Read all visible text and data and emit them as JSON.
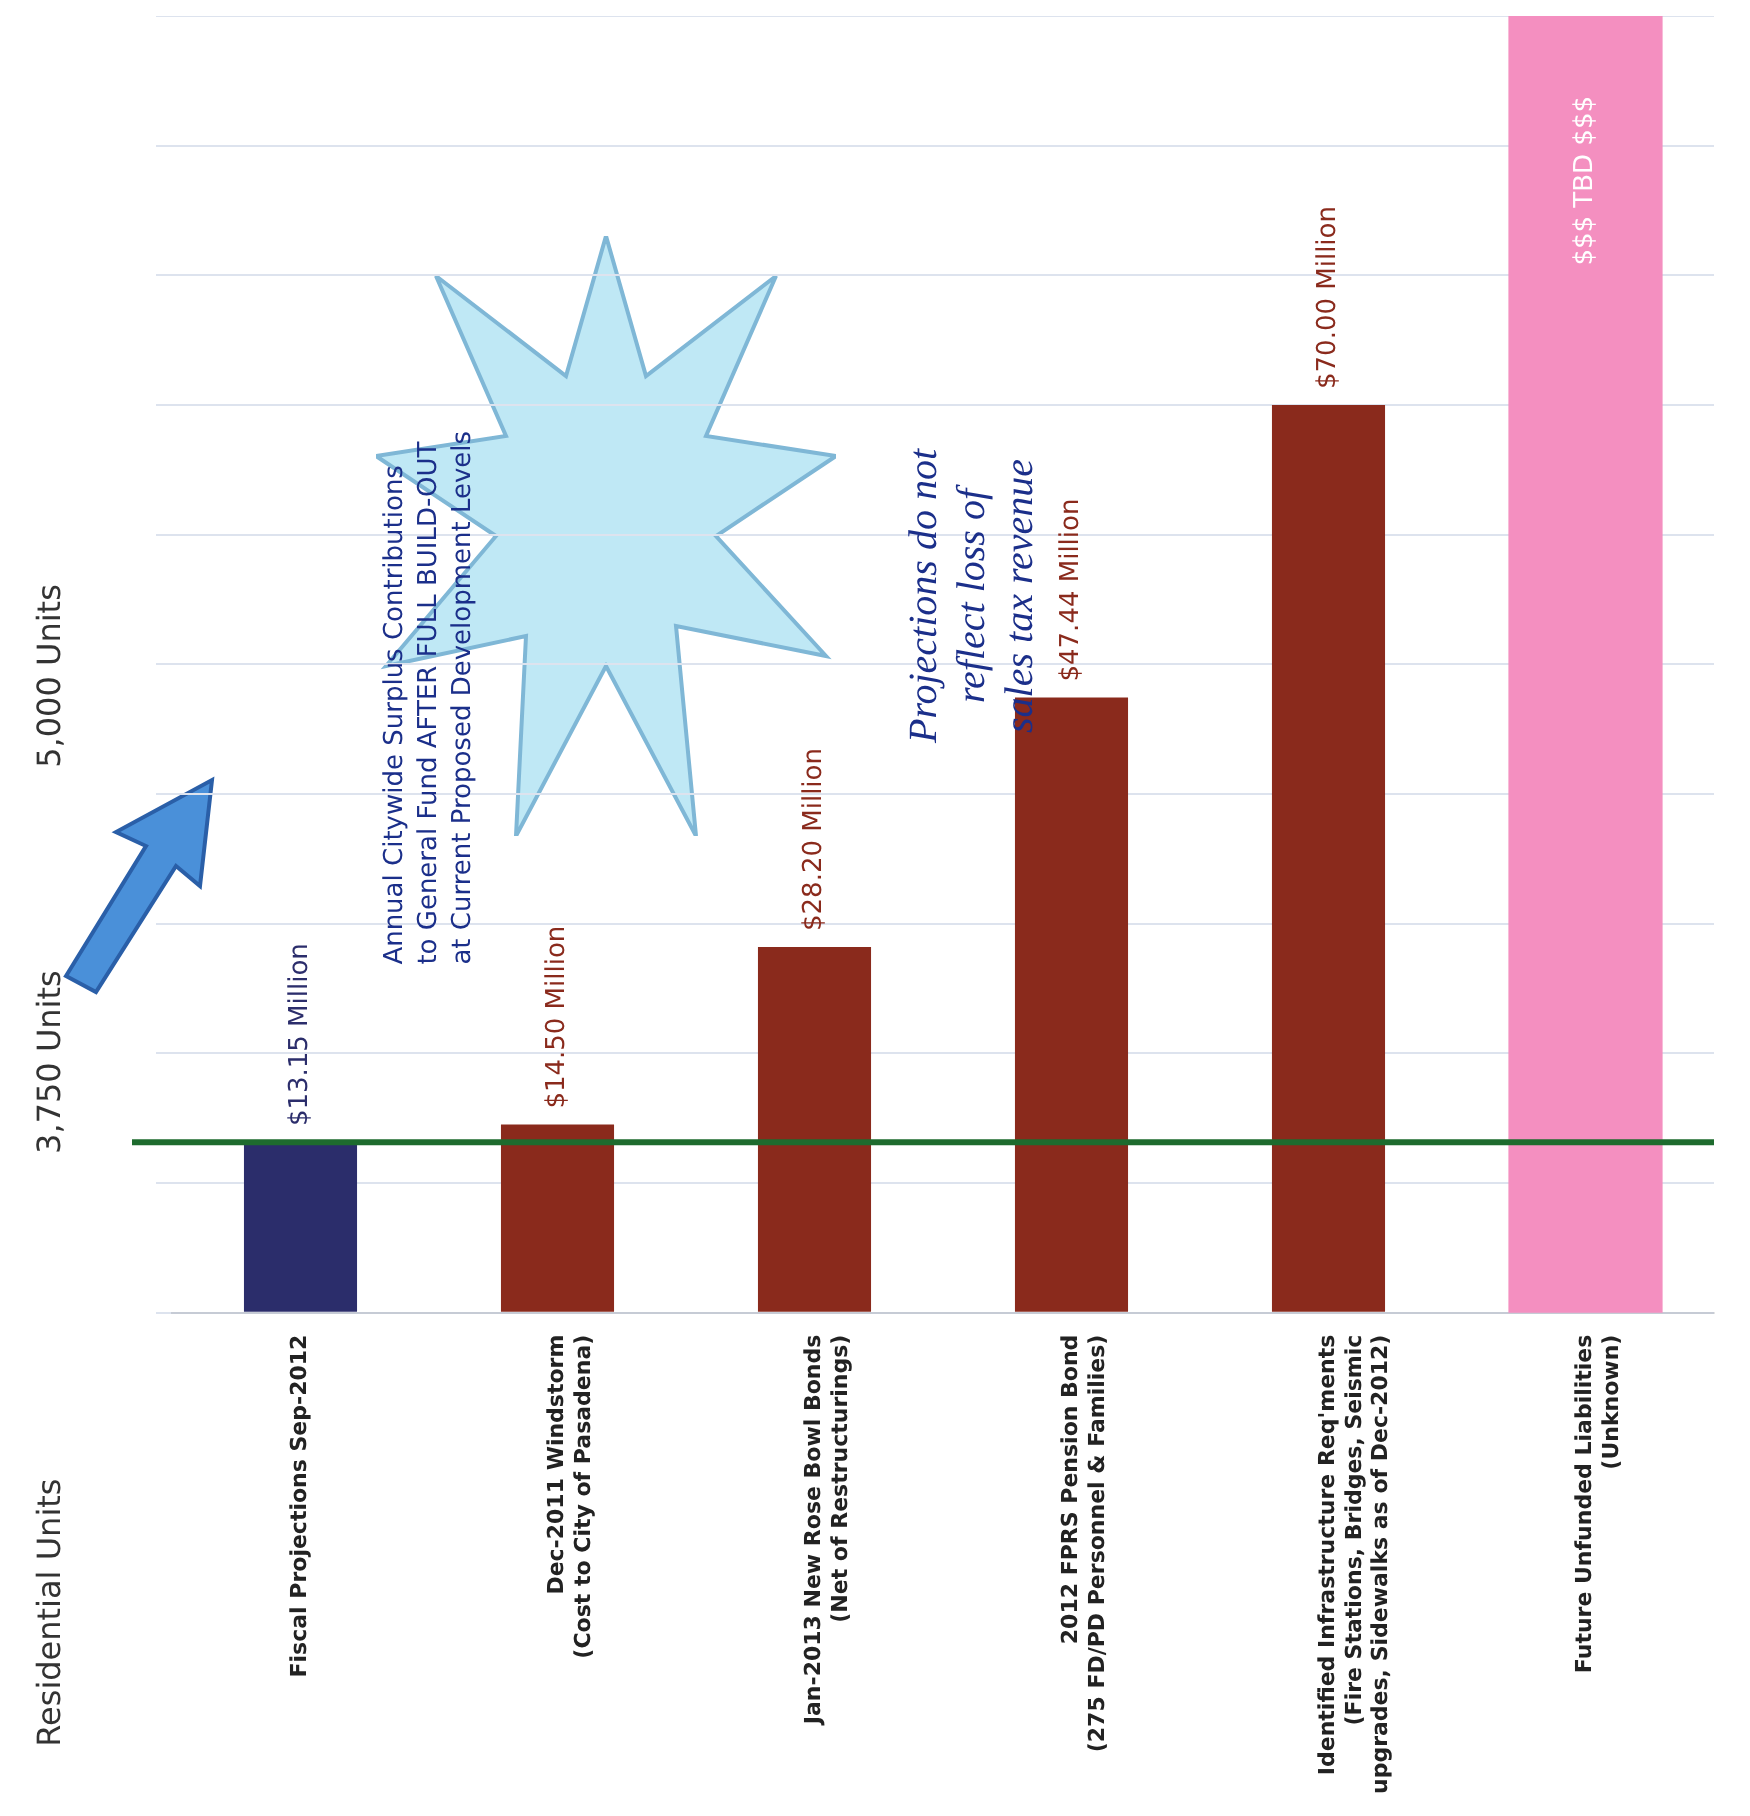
{
  "chart_data": {
    "type": "bar",
    "categories": [
      "Fiscal Projections Sep-2012",
      "Dec-2011 Windstorm\n(Cost to City of Pasadena)",
      "Jan-2013 New Rose Bowl Bonds\n(Net of Restructurings)",
      "2012 FPRS Pension Bond\n(275 FD/PD Personnel & Families)",
      "Identified Infrastructure Req'ments\n(Fire Stations, Bridges, Seismic\nupgrades, Sidewalks as of Dec-2012)",
      "Future Unfunded Liabilities\n(Unknown)"
    ],
    "values": [
      13.15,
      14.5,
      28.2,
      47.44,
      70.0,
      null
    ],
    "colors": [
      "#2b2d6b",
      "#8a2a1c",
      "#8a2a1c",
      "#8a2a1c",
      "#8a2a1c",
      "#8a2a1c"
    ],
    "value_labels": [
      "$13.15 Million",
      "$14.50 Million",
      "$28.20 Million",
      "$47.44 Million",
      "$70.00 Million",
      null
    ],
    "bands": [
      {
        "axis": "x",
        "from": "Future Unfunded Liabilities\n(Unknown)",
        "to": "Future Unfunded Liabilities\n(Unknown)",
        "label": "$$$ TBD $$$",
        "color": "#f48fc0"
      }
    ],
    "ref_lines": [
      {
        "axis": "y",
        "value": 13.15,
        "color": "#1e6b2e"
      }
    ],
    "annotations": [
      "Residential Units",
      "3,750 Units",
      "5,000 Units",
      "Annual Citywide Surplus Contributions\nto General Fund AFTER FULL BUILD-OUT\nat Current Proposed Development Levels",
      "Projections do not\nreflect loss of\nsales tax revenue"
    ],
    "grid": "y",
    "legend": false
  }
}
